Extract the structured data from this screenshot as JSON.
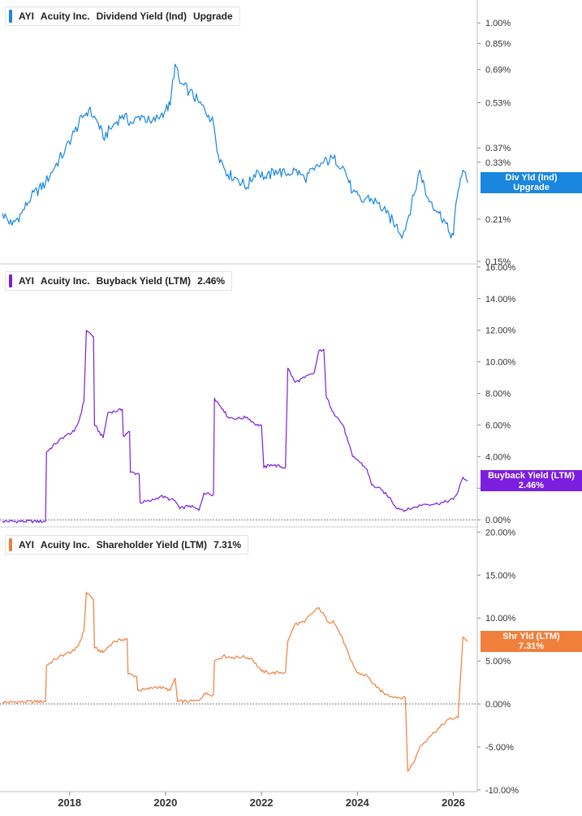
{
  "chart_data": [
    {
      "type": "line",
      "ticker": "AYI",
      "company": "Acuity Inc.",
      "metric": "Dividend Yield (Ind)",
      "value_label": "Upgrade",
      "color": "#1a86e0",
      "y_scale": "log",
      "ylim": [
        0.148,
        1.2
      ],
      "y_ticks": [
        1.0,
        0.85,
        0.69,
        0.53,
        0.37,
        0.33,
        0.21,
        0.15
      ],
      "y_tick_labels": [
        "1.00%",
        "0.85%",
        "0.69%",
        "0.53%",
        "0.37%",
        "0.33%",
        "0.21%",
        "0.15%"
      ],
      "badge": {
        "line1": "Div Yld (Ind)",
        "line2": "Upgrade",
        "value": 0.28
      },
      "series": [
        {
          "values": [
            [
              2016.6,
              0.22
            ],
            [
              2016.8,
              0.2
            ],
            [
              2017.0,
              0.22
            ],
            [
              2017.2,
              0.25
            ],
            [
              2017.5,
              0.28
            ],
            [
              2017.7,
              0.32
            ],
            [
              2017.9,
              0.36
            ],
            [
              2018.1,
              0.42
            ],
            [
              2018.3,
              0.48
            ],
            [
              2018.4,
              0.5
            ],
            [
              2018.6,
              0.45
            ],
            [
              2018.7,
              0.4
            ],
            [
              2018.9,
              0.44
            ],
            [
              2019.1,
              0.48
            ],
            [
              2019.3,
              0.45
            ],
            [
              2019.5,
              0.48
            ],
            [
              2019.7,
              0.45
            ],
            [
              2019.9,
              0.48
            ],
            [
              2020.0,
              0.5
            ],
            [
              2020.1,
              0.52
            ],
            [
              2020.2,
              0.72
            ],
            [
              2020.3,
              0.62
            ],
            [
              2020.5,
              0.58
            ],
            [
              2020.7,
              0.53
            ],
            [
              2020.9,
              0.48
            ],
            [
              2021.0,
              0.45
            ],
            [
              2021.1,
              0.35
            ],
            [
              2021.3,
              0.3
            ],
            [
              2021.5,
              0.29
            ],
            [
              2021.7,
              0.27
            ],
            [
              2021.9,
              0.31
            ],
            [
              2022.1,
              0.29
            ],
            [
              2022.3,
              0.31
            ],
            [
              2022.5,
              0.3
            ],
            [
              2022.7,
              0.31
            ],
            [
              2022.9,
              0.29
            ],
            [
              2023.1,
              0.31
            ],
            [
              2023.3,
              0.33
            ],
            [
              2023.5,
              0.34
            ],
            [
              2023.7,
              0.32
            ],
            [
              2023.8,
              0.29
            ],
            [
              2023.9,
              0.26
            ],
            [
              2024.1,
              0.24
            ],
            [
              2024.2,
              0.25
            ],
            [
              2024.4,
              0.24
            ],
            [
              2024.6,
              0.22
            ],
            [
              2024.8,
              0.2
            ],
            [
              2024.95,
              0.185
            ],
            [
              2025.05,
              0.21
            ],
            [
              2025.2,
              0.26
            ],
            [
              2025.3,
              0.31
            ],
            [
              2025.45,
              0.25
            ],
            [
              2025.55,
              0.24
            ],
            [
              2025.7,
              0.22
            ],
            [
              2025.8,
              0.21
            ],
            [
              2025.9,
              0.19
            ],
            [
              2026.0,
              0.185
            ],
            [
              2026.08,
              0.25
            ],
            [
              2026.15,
              0.29
            ],
            [
              2026.2,
              0.31
            ],
            [
              2026.3,
              0.28
            ]
          ]
        }
      ]
    },
    {
      "type": "line",
      "ticker": "AYI",
      "company": "Acuity Inc.",
      "metric": "Buyback Yield (LTM)",
      "value_label": "2.46%",
      "color": "#7b1ee0",
      "y_scale": "linear",
      "ylim": [
        -0.4,
        16.2
      ],
      "y_ticks": [
        16,
        14,
        12,
        10,
        8,
        6,
        4,
        2,
        0
      ],
      "y_tick_labels": [
        "16.00%",
        "14.00%",
        "12.00%",
        "10.00%",
        "8.00%",
        "6.00%",
        "4.00%",
        "",
        "0.00%"
      ],
      "zero_line": true,
      "badge": {
        "line1": "Buyback Yield (LTM)",
        "line2": "2.46%",
        "value": 2.46
      },
      "series": [
        {
          "values": [
            [
              2016.6,
              -0.1
            ],
            [
              2017.5,
              -0.1
            ],
            [
              2017.52,
              4.3
            ],
            [
              2017.7,
              4.8
            ],
            [
              2017.9,
              5.3
            ],
            [
              2018.1,
              5.6
            ],
            [
              2018.2,
              6.3
            ],
            [
              2018.3,
              7.5
            ],
            [
              2018.35,
              12.0
            ],
            [
              2018.5,
              11.6
            ],
            [
              2018.52,
              6.0
            ],
            [
              2018.7,
              5.2
            ],
            [
              2018.8,
              6.8
            ],
            [
              2019.0,
              6.9
            ],
            [
              2019.1,
              7.0
            ],
            [
              2019.12,
              5.3
            ],
            [
              2019.25,
              5.6
            ],
            [
              2019.27,
              3.0
            ],
            [
              2019.45,
              2.9
            ],
            [
              2019.47,
              1.1
            ],
            [
              2019.7,
              1.2
            ],
            [
              2019.9,
              1.5
            ],
            [
              2020.1,
              1.3
            ],
            [
              2020.2,
              1.2
            ],
            [
              2020.3,
              0.7
            ],
            [
              2020.5,
              0.9
            ],
            [
              2020.7,
              0.6
            ],
            [
              2020.8,
              1.7
            ],
            [
              2021.0,
              1.6
            ],
            [
              2021.02,
              7.7
            ],
            [
              2021.2,
              7.0
            ],
            [
              2021.3,
              6.5
            ],
            [
              2021.5,
              6.4
            ],
            [
              2021.7,
              6.5
            ],
            [
              2021.9,
              6.0
            ],
            [
              2022.0,
              6.0
            ],
            [
              2022.05,
              3.3
            ],
            [
              2022.2,
              3.5
            ],
            [
              2022.5,
              3.3
            ],
            [
              2022.55,
              9.6
            ],
            [
              2022.7,
              8.7
            ],
            [
              2022.9,
              9.0
            ],
            [
              2023.1,
              9.3
            ],
            [
              2023.2,
              10.7
            ],
            [
              2023.3,
              10.8
            ],
            [
              2023.35,
              7.8
            ],
            [
              2023.5,
              6.8
            ],
            [
              2023.7,
              6.0
            ],
            [
              2023.8,
              5.0
            ],
            [
              2023.9,
              4.0
            ],
            [
              2024.0,
              3.8
            ],
            [
              2024.2,
              3.2
            ],
            [
              2024.3,
              2.2
            ],
            [
              2024.5,
              1.9
            ],
            [
              2024.7,
              1.3
            ],
            [
              2024.8,
              0.8
            ],
            [
              2025.0,
              0.6
            ],
            [
              2025.2,
              0.8
            ],
            [
              2025.4,
              1.0
            ],
            [
              2025.6,
              1.0
            ],
            [
              2025.8,
              1.1
            ],
            [
              2026.0,
              1.3
            ],
            [
              2026.1,
              1.8
            ],
            [
              2026.2,
              2.7
            ],
            [
              2026.3,
              2.46
            ]
          ]
        }
      ]
    },
    {
      "type": "line",
      "ticker": "AYI",
      "company": "Acuity Inc.",
      "metric": "Shareholder Yield (LTM)",
      "value_label": "7.31%",
      "color": "#f07f3c",
      "y_scale": "linear",
      "ylim": [
        -10.2,
        20.6
      ],
      "y_ticks": [
        20,
        15,
        10,
        5,
        0,
        -5,
        -10
      ],
      "y_tick_labels": [
        "20.00%",
        "15.00%",
        "10.00%",
        "5.00%",
        "0.00%",
        "-5.00%",
        "-10.00%"
      ],
      "zero_line": true,
      "badge": {
        "line1": "Shr Yld (LTM)",
        "line2": "7.31%",
        "value": 7.31
      },
      "series": [
        {
          "values": [
            [
              2016.6,
              0.2
            ],
            [
              2017.5,
              0.3
            ],
            [
              2017.52,
              4.5
            ],
            [
              2017.7,
              5.2
            ],
            [
              2017.9,
              5.8
            ],
            [
              2018.1,
              6.2
            ],
            [
              2018.2,
              7.0
            ],
            [
              2018.3,
              8.5
            ],
            [
              2018.35,
              13.0
            ],
            [
              2018.5,
              12.2
            ],
            [
              2018.52,
              6.5
            ],
            [
              2018.7,
              6.0
            ],
            [
              2018.9,
              7.2
            ],
            [
              2019.1,
              7.5
            ],
            [
              2019.2,
              7.6
            ],
            [
              2019.22,
              3.5
            ],
            [
              2019.4,
              3.2
            ],
            [
              2019.42,
              1.6
            ],
            [
              2019.6,
              1.7
            ],
            [
              2019.8,
              2.0
            ],
            [
              2020.0,
              1.8
            ],
            [
              2020.1,
              1.6
            ],
            [
              2020.2,
              3.0
            ],
            [
              2020.25,
              0.3
            ],
            [
              2020.5,
              0.3
            ],
            [
              2020.7,
              0.4
            ],
            [
              2020.8,
              1.2
            ],
            [
              2021.0,
              1.1
            ],
            [
              2021.02,
              5.0
            ],
            [
              2021.2,
              5.6
            ],
            [
              2021.4,
              5.4
            ],
            [
              2021.6,
              5.5
            ],
            [
              2021.8,
              5.3
            ],
            [
              2022.0,
              3.8
            ],
            [
              2022.2,
              3.6
            ],
            [
              2022.5,
              3.7
            ],
            [
              2022.55,
              7.3
            ],
            [
              2022.7,
              9.3
            ],
            [
              2022.9,
              9.5
            ],
            [
              2023.0,
              10.3
            ],
            [
              2023.2,
              11.2
            ],
            [
              2023.4,
              9.5
            ],
            [
              2023.5,
              9.7
            ],
            [
              2023.7,
              7.5
            ],
            [
              2023.85,
              5.2
            ],
            [
              2024.0,
              3.6
            ],
            [
              2024.2,
              3.3
            ],
            [
              2024.4,
              1.9
            ],
            [
              2024.6,
              1.1
            ],
            [
              2024.8,
              0.8
            ],
            [
              2025.0,
              0.7
            ],
            [
              2025.05,
              -7.8
            ],
            [
              2025.2,
              -6.5
            ],
            [
              2025.3,
              -5.0
            ],
            [
              2025.5,
              -3.8
            ],
            [
              2025.7,
              -2.8
            ],
            [
              2025.9,
              -1.8
            ],
            [
              2026.1,
              -1.6
            ],
            [
              2026.2,
              7.8
            ],
            [
              2026.3,
              7.31
            ]
          ]
        }
      ]
    }
  ],
  "x_axis": {
    "ticks": [
      2018,
      2020,
      2022,
      2024,
      2026
    ],
    "labels": [
      "2018",
      "2020",
      "2022",
      "2024",
      "2026"
    ],
    "xlim": [
      2016.55,
      2026.5
    ]
  }
}
